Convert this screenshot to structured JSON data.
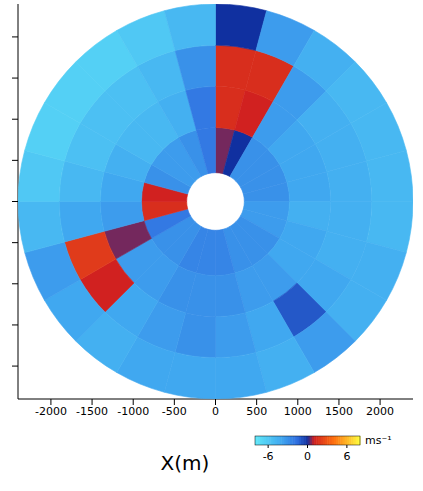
{
  "chart_data": {
    "type": "heatmap",
    "xlabel": "X(m)",
    "xlim": [
      -2400,
      2400
    ],
    "xticks": [
      -2000,
      -1500,
      -1000,
      -500,
      0,
      500,
      1000,
      1500,
      2000
    ],
    "ylim": [
      -2400,
      2400
    ],
    "yticks": [
      -2000,
      -1500,
      -1000,
      -500,
      0,
      500,
      1000,
      1500,
      2000
    ],
    "tick_labels": "x",
    "grid": false,
    "r_edges": [
      350,
      900,
      1400,
      1900,
      2400
    ],
    "azimuth_edges": [
      0,
      15,
      30,
      45,
      60,
      75,
      90,
      105,
      120,
      135,
      150,
      165,
      180,
      195,
      210,
      225,
      240,
      255,
      270,
      285,
      300,
      315,
      330,
      345,
      360
    ],
    "values": [
      [
        0.5,
        0,
        -3,
        -3,
        -3,
        -3,
        -3.5,
        -3.5,
        -3,
        -3,
        -3,
        -2.5,
        -2.5,
        -2.5,
        -3,
        -3,
        -2,
        1.5,
        1,
        -3,
        -3.5,
        -3.5,
        -3,
        -2
      ],
      [
        1.5,
        1,
        -3.5,
        -4,
        -4,
        -4,
        -4.5,
        -4,
        -4,
        -3.5,
        -3.5,
        -3,
        -3,
        -3,
        -3.5,
        -3.5,
        0.5,
        -3.5,
        -4,
        -4.5,
        -5,
        -5,
        -4.5,
        -2
      ],
      [
        1.5,
        1.5,
        -3.5,
        -4.5,
        -4.5,
        -4.5,
        -4.5,
        -4.5,
        -4,
        -1,
        -4,
        -3.5,
        -3,
        -3.5,
        -4,
        1,
        2,
        -4,
        -5,
        -5.5,
        -5.5,
        -5.5,
        -5,
        -3
      ],
      [
        0,
        -3.5,
        -4.5,
        -5,
        -5,
        -5,
        -5,
        -4.5,
        -4.5,
        -3.5,
        -4.5,
        -4,
        -4,
        -4,
        -4.5,
        -4,
        -3.5,
        -5,
        -6,
        -6.5,
        -6.5,
        -6.5,
        -6,
        -5
      ]
    ],
    "colorbar": {
      "range": [
        -8,
        8
      ],
      "ticks": [
        -6,
        0,
        6
      ],
      "label": "ms⁻¹"
    }
  }
}
